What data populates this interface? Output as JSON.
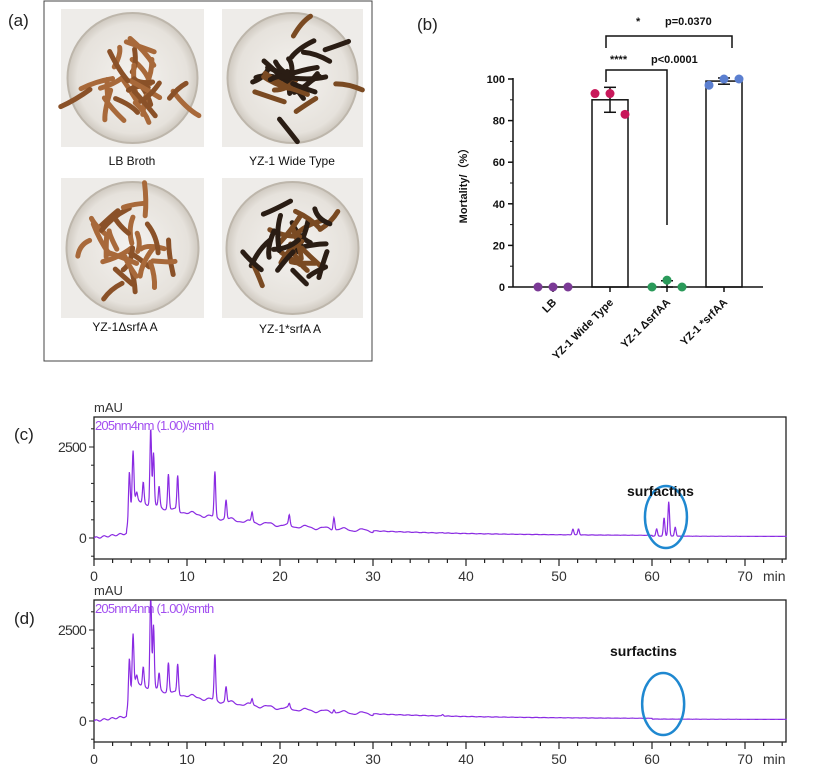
{
  "panels": {
    "a": {
      "label": "(a)",
      "photos": [
        {
          "caption": "LB Broth",
          "larvae_color": "light-brown"
        },
        {
          "caption": "YZ-1 Wide Type",
          "larvae_color": "dark-black"
        },
        {
          "caption": "YZ-1ΔsrfA A",
          "larvae_color": "light-brown"
        },
        {
          "caption": "YZ-1*srfA A",
          "larvae_color": "dark-black"
        }
      ]
    },
    "b": {
      "label": "(b)"
    },
    "c": {
      "label": "(c)",
      "annotation": "surfactins"
    },
    "d": {
      "label": "(d)",
      "annotation": "surfactins"
    }
  },
  "chart_data": [
    {
      "type": "bar",
      "panel": "b",
      "ylabel": "Mortality/（%）",
      "ylim": [
        0,
        100
      ],
      "yticks": [
        "0",
        "20",
        "40",
        "60",
        "80",
        "100"
      ],
      "categories": [
        "LB",
        "YZ-1 Wide Type",
        "YZ-1 ΔsrfAA",
        "YZ-1 *srfAA"
      ],
      "values": [
        0,
        90,
        1.1,
        99
      ],
      "error_sd": [
        0,
        6,
        1.9,
        1.5
      ],
      "points": [
        [
          0,
          0,
          0
        ],
        [
          93,
          93,
          83
        ],
        [
          0,
          3.3,
          0
        ],
        [
          97,
          100,
          100
        ]
      ],
      "point_colors": [
        "#7b3a96",
        "#c8185a",
        "#2a9a5a",
        "#5b7fd0"
      ],
      "significance": [
        {
          "from": "YZ-1 Wide Type",
          "to": "YZ-1 *srfAA",
          "stars": "*",
          "text": "p=0.0370"
        },
        {
          "from": "YZ-1 Wide Type",
          "to": "YZ-1 ΔsrfAA",
          "stars": "****",
          "text": "p<0.0001"
        }
      ]
    },
    {
      "type": "line",
      "panel": "c",
      "ylabel": "mAU",
      "xlabel": "min",
      "series_label": "205nm4nm (1.00)/smth",
      "color": "#8a2be2",
      "xlim": [
        0,
        74.5
      ],
      "ylim": [
        -500,
        3500
      ],
      "xticks": [
        "0",
        "10",
        "20",
        "30",
        "40",
        "50",
        "60",
        "70"
      ],
      "yticks": [
        "0",
        "2500"
      ],
      "peaks": [
        [
          3.8,
          1800
        ],
        [
          4.2,
          2400
        ],
        [
          4.6,
          1200
        ],
        [
          5.3,
          1550
        ],
        [
          6.1,
          3000
        ],
        [
          6.4,
          2300
        ],
        [
          7.0,
          1400
        ],
        [
          8.0,
          1750
        ],
        [
          9.0,
          1700
        ],
        [
          13.0,
          1800
        ],
        [
          14.2,
          1050
        ],
        [
          17.0,
          700
        ],
        [
          21.0,
          600
        ],
        [
          25.8,
          600
        ],
        [
          37.5,
          150
        ],
        [
          51.5,
          250
        ],
        [
          52.1,
          250
        ],
        [
          60.5,
          250
        ],
        [
          61.3,
          550
        ],
        [
          61.8,
          1000
        ],
        [
          62.5,
          300
        ]
      ],
      "highlight_min": 61.5
    },
    {
      "type": "line",
      "panel": "d",
      "ylabel": "mAU",
      "xlabel": "min",
      "series_label": "205nm4nm (1.00)/smth",
      "color": "#8a2be2",
      "xlim": [
        0,
        74.5
      ],
      "ylim": [
        -500,
        3500
      ],
      "xticks": [
        "0",
        "10",
        "20",
        "30",
        "40",
        "50",
        "60",
        "70"
      ],
      "yticks": [
        "0",
        "2500"
      ],
      "peaks": [
        [
          3.8,
          1700
        ],
        [
          4.2,
          2400
        ],
        [
          4.6,
          1200
        ],
        [
          5.3,
          1500
        ],
        [
          6.1,
          3600
        ],
        [
          6.4,
          2600
        ],
        [
          7.0,
          1300
        ],
        [
          8.0,
          1600
        ],
        [
          9.0,
          1550
        ],
        [
          13.0,
          1800
        ],
        [
          14.2,
          950
        ],
        [
          17.0,
          600
        ],
        [
          21.0,
          450
        ],
        [
          25.8,
          350
        ],
        [
          37.5,
          180
        ]
      ],
      "highlight_min": 61.2
    }
  ]
}
